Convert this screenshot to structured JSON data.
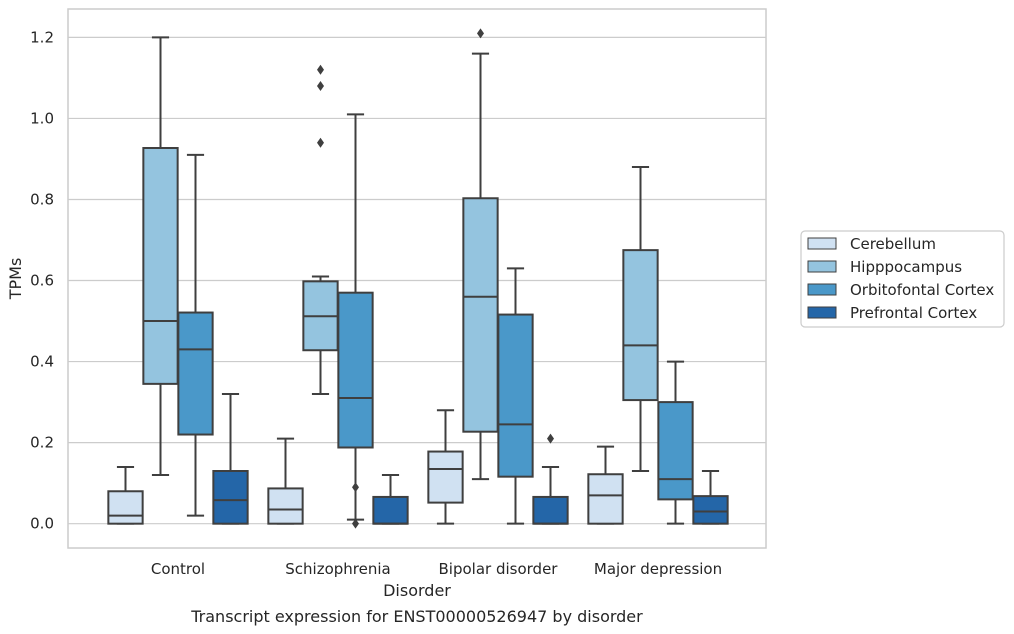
{
  "chart_data": {
    "type": "boxplot",
    "title": "",
    "caption": "Transcript expression for ENST00000526947 by disorder",
    "xlabel": "Disorder",
    "ylabel": "TPMs",
    "ylim": [
      -0.06,
      1.27
    ],
    "yticks": [
      0.0,
      0.2,
      0.4,
      0.6,
      0.8,
      1.0,
      1.2
    ],
    "grid": "horizontal",
    "legend_position": "right",
    "categories": [
      "Control",
      "Schizophrenia",
      "Bipolar disorder",
      "Major depression"
    ],
    "series": [
      {
        "name": "Cerebellum",
        "color": "#d0e1f2",
        "boxes": [
          {
            "whislo": 0.0,
            "q1": 0.0,
            "med": 0.02,
            "q3": 0.08,
            "whishi": 0.14,
            "fliers": []
          },
          {
            "whislo": 0.0,
            "q1": 0.0,
            "med": 0.035,
            "q3": 0.087,
            "whishi": 0.21,
            "fliers": []
          },
          {
            "whislo": 0.0,
            "q1": 0.052,
            "med": 0.135,
            "q3": 0.178,
            "whishi": 0.28,
            "fliers": []
          },
          {
            "whislo": 0.0,
            "q1": 0.0,
            "med": 0.07,
            "q3": 0.122,
            "whishi": 0.19,
            "fliers": []
          }
        ]
      },
      {
        "name": "Hipppocampus",
        "color": "#94c4df",
        "boxes": [
          {
            "whislo": 0.12,
            "q1": 0.345,
            "med": 0.5,
            "q3": 0.927,
            "whishi": 1.2,
            "fliers": []
          },
          {
            "whislo": 0.32,
            "q1": 0.428,
            "med": 0.512,
            "q3": 0.598,
            "whishi": 0.61,
            "fliers": [
              0.94,
              1.08,
              1.12
            ]
          },
          {
            "whislo": 0.11,
            "q1": 0.227,
            "med": 0.56,
            "q3": 0.803,
            "whishi": 1.16,
            "fliers": [
              1.21
            ]
          },
          {
            "whislo": 0.13,
            "q1": 0.305,
            "med": 0.44,
            "q3": 0.675,
            "whishi": 0.88,
            "fliers": []
          }
        ]
      },
      {
        "name": "Orbitofontal Cortex",
        "color": "#4a98c9",
        "boxes": [
          {
            "whislo": 0.02,
            "q1": 0.22,
            "med": 0.43,
            "q3": 0.521,
            "whishi": 0.91,
            "fliers": []
          },
          {
            "whislo": 0.01,
            "q1": 0.188,
            "med": 0.31,
            "q3": 0.57,
            "whishi": 1.01,
            "fliers": [
              0.0,
              0.09
            ]
          },
          {
            "whislo": 0.0,
            "q1": 0.116,
            "med": 0.245,
            "q3": 0.516,
            "whishi": 0.63,
            "fliers": []
          },
          {
            "whislo": 0.0,
            "q1": 0.06,
            "med": 0.11,
            "q3": 0.3,
            "whishi": 0.4,
            "fliers": []
          }
        ]
      },
      {
        "name": "Prefrontal Cortex",
        "color": "#2466a8",
        "boxes": [
          {
            "whislo": 0.0,
            "q1": 0.0,
            "med": 0.058,
            "q3": 0.13,
            "whishi": 0.32,
            "fliers": []
          },
          {
            "whislo": 0.0,
            "q1": 0.0,
            "med": 0.0,
            "q3": 0.066,
            "whishi": 0.12,
            "fliers": []
          },
          {
            "whislo": 0.0,
            "q1": 0.0,
            "med": 0.0,
            "q3": 0.066,
            "whishi": 0.14,
            "fliers": [
              0.21
            ]
          },
          {
            "whislo": 0.0,
            "q1": 0.0,
            "med": 0.03,
            "q3": 0.068,
            "whishi": 0.13,
            "fliers": []
          }
        ]
      }
    ]
  }
}
